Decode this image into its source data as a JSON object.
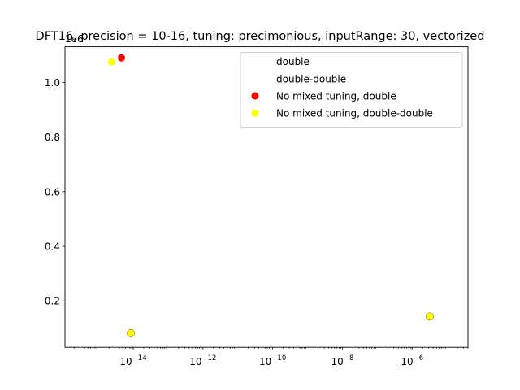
{
  "chart_data": {
    "type": "scatter",
    "title": "DFT16, precision = 10-16, tuning: precimonious, inputRange: 30, vectorized",
    "xlabel": "",
    "ylabel": "",
    "x_scale": "log",
    "xlim": [
      1.1e-16,
      4e-05
    ],
    "ylim": [
      0.0305,
      1.1305
    ],
    "y_offset_label": "1e6",
    "x_ticks": [
      {
        "value": 1e-14,
        "base": "10",
        "exp": "−14"
      },
      {
        "value": 1e-12,
        "base": "10",
        "exp": "−12"
      },
      {
        "value": 1e-10,
        "base": "10",
        "exp": "−10"
      },
      {
        "value": 1e-08,
        "base": "10",
        "exp": "−8"
      },
      {
        "value": 1e-06,
        "base": "10",
        "exp": "−6"
      }
    ],
    "y_ticks": [
      {
        "value": 0.2,
        "label": "0.2"
      },
      {
        "value": 0.4,
        "label": "0.4"
      },
      {
        "value": 0.6,
        "label": "0.6"
      },
      {
        "value": 0.8,
        "label": "0.8"
      },
      {
        "value": 1.0,
        "label": "1.0"
      }
    ],
    "grid": false,
    "legend_position": "upper-right",
    "legend": [
      {
        "label": "double",
        "marker": "none"
      },
      {
        "label": "double-double",
        "marker": "none"
      },
      {
        "label": "No mixed tuning, double",
        "marker": "circle",
        "color": "#ff0000"
      },
      {
        "label": "No mixed tuning, double-double",
        "marker": "circle",
        "color": "#ffff00"
      }
    ],
    "series": [
      {
        "name": "double",
        "color": "#1f77b4",
        "points": [
          {
            "x": 8.5e-15,
            "y": 0.082
          },
          {
            "x": 3.2e-06,
            "y": 0.143
          }
        ]
      },
      {
        "name": "double-double",
        "color": "#ff7f0e",
        "points": [
          {
            "x": 8.5e-15,
            "y": 0.082
          },
          {
            "x": 3.2e-06,
            "y": 0.143
          }
        ]
      },
      {
        "name": "No mixed tuning, double",
        "color": "#ff0000",
        "points": [
          {
            "x": 4.6e-15,
            "y": 1.09
          },
          {
            "x": 8.5e-15,
            "y": 0.082
          },
          {
            "x": 3.2e-06,
            "y": 0.143
          }
        ]
      },
      {
        "name": "No mixed tuning, double-double",
        "color": "#ffff00",
        "points": [
          {
            "x": 2.4e-15,
            "y": 1.075
          },
          {
            "x": 8.5e-15,
            "y": 0.082
          },
          {
            "x": 3.2e-06,
            "y": 0.143
          }
        ]
      }
    ]
  }
}
